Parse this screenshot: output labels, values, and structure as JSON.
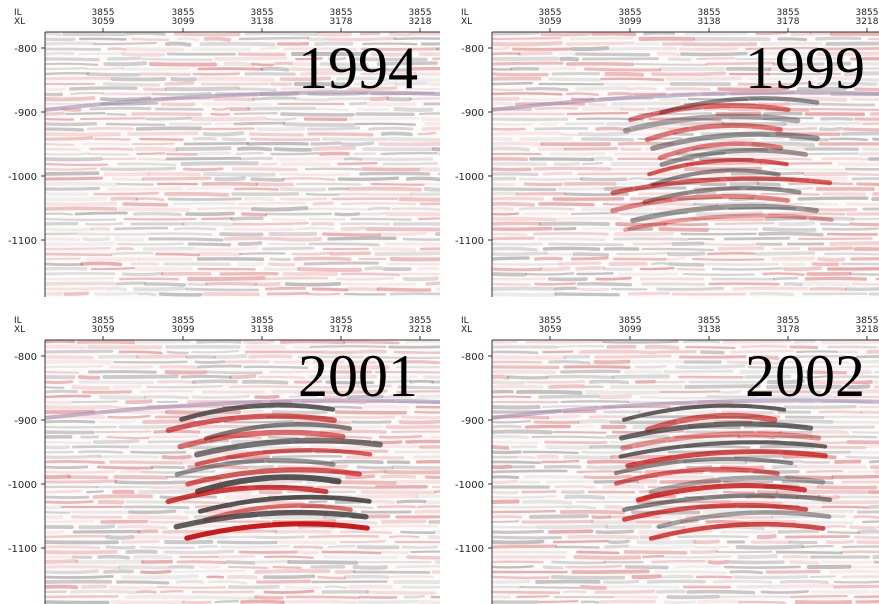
{
  "x_axis": {
    "row_labels": [
      "IL",
      "XL"
    ],
    "ticks": [
      {
        "il": "3855",
        "xl": "3059"
      },
      {
        "il": "3855",
        "xl": "3099"
      },
      {
        "il": "3855",
        "xl": "3138"
      },
      {
        "il": "3855",
        "xl": "3178"
      },
      {
        "il": "3855",
        "xl": "3218"
      }
    ]
  },
  "y_axis": {
    "ticks": [
      "-800",
      "-900",
      "-1000",
      "-1100"
    ]
  },
  "panels": [
    {
      "year": "1994"
    },
    {
      "year": "1999"
    },
    {
      "year": "2001"
    },
    {
      "year": "2002"
    }
  ]
}
